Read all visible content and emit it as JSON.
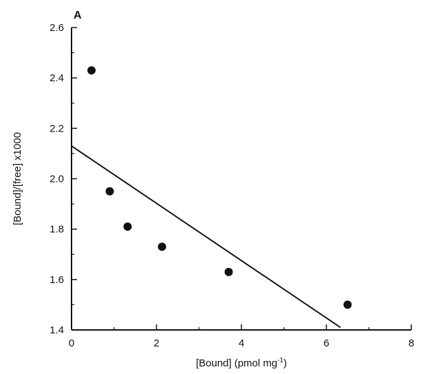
{
  "chart_data": {
    "type": "scatter",
    "panel_label": "A",
    "xlabel": "[Bound] (pmol mg",
    "xlabel_superscript": "-1",
    "xlabel_suffix": ")",
    "ylabel": "[Bound]/[free] x1000",
    "xlim": [
      0,
      8
    ],
    "ylim": [
      1.4,
      2.6
    ],
    "x_ticks": [
      0,
      2,
      4,
      6,
      8
    ],
    "y_ticks": [
      1.4,
      1.6,
      1.8,
      2.0,
      2.2,
      2.4,
      2.6
    ],
    "x_tick_labels": [
      "0",
      "2",
      "4",
      "6",
      "8"
    ],
    "y_tick_labels": [
      "1.4",
      "1.6",
      "1.8",
      "2.0",
      "2.2",
      "2.4",
      "2.6"
    ],
    "grid": false,
    "points": [
      {
        "x": 0.47,
        "y": 2.43
      },
      {
        "x": 0.9,
        "y": 1.95
      },
      {
        "x": 1.32,
        "y": 1.81
      },
      {
        "x": 2.13,
        "y": 1.73
      },
      {
        "x": 3.7,
        "y": 1.63
      },
      {
        "x": 6.5,
        "y": 1.5
      }
    ],
    "fit_line": {
      "x": [
        0,
        6.33
      ],
      "y": [
        2.13,
        1.41
      ]
    },
    "colors": {
      "points": "#111111",
      "line": "#111111",
      "axes": "#111111"
    }
  }
}
